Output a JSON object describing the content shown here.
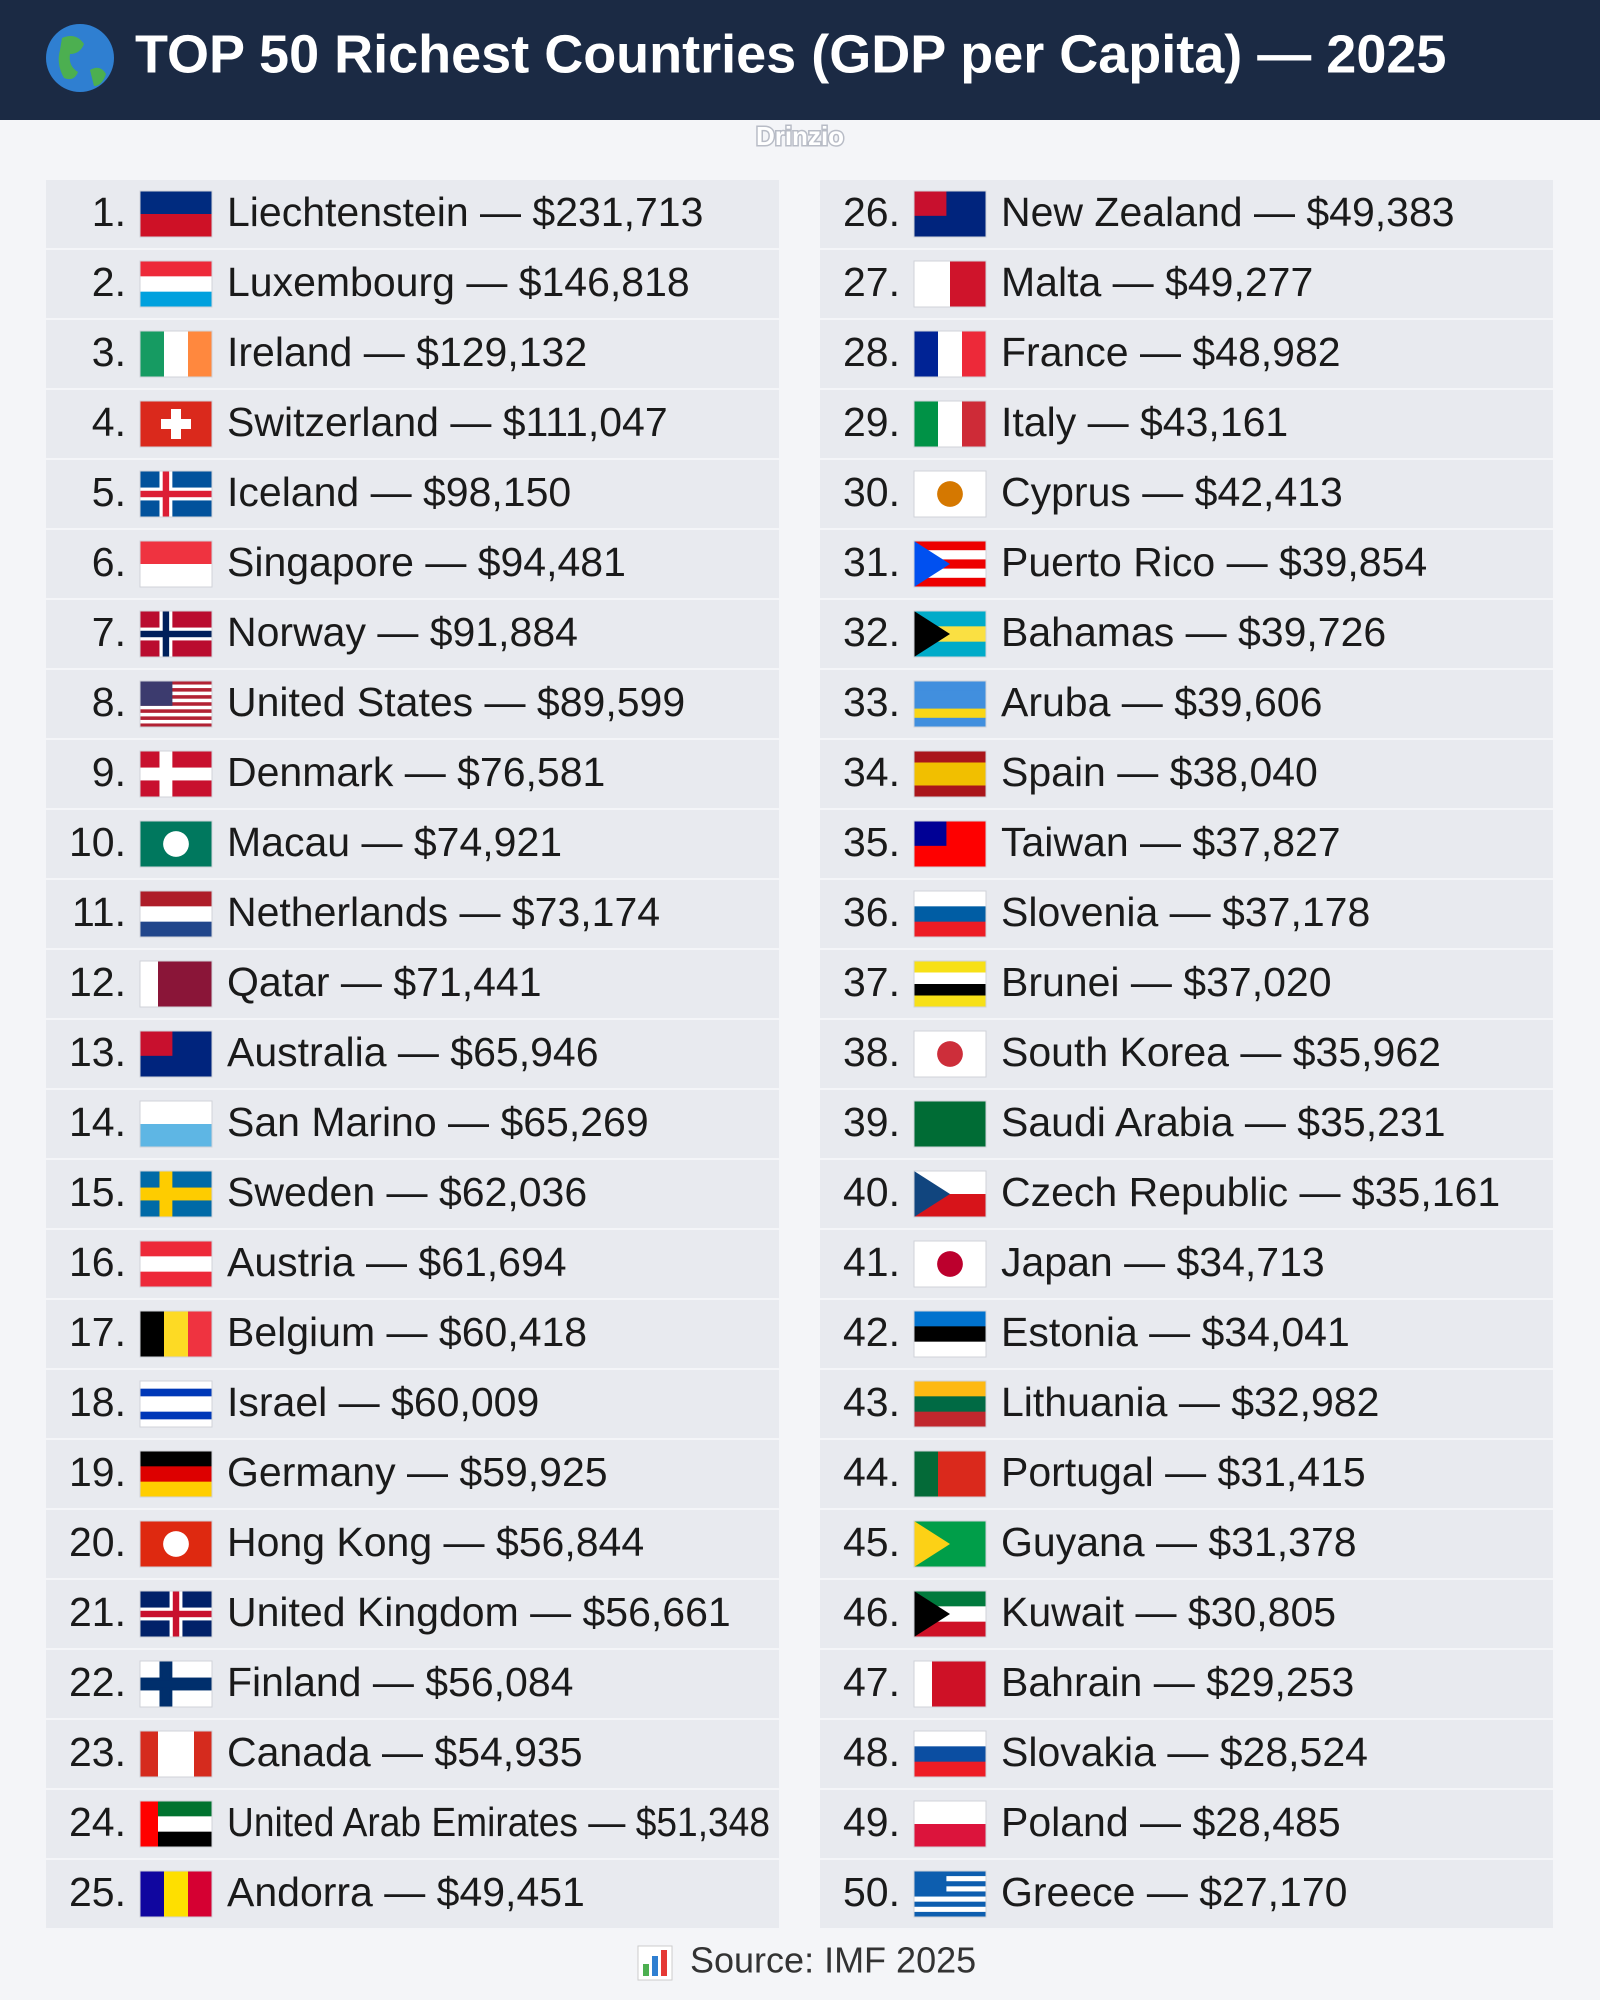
{
  "header": {
    "title": "TOP 50 Richest Countries (GDP per Capita) — 2025",
    "watermark": "Drinzio"
  },
  "items": [
    {
      "rank": "1.",
      "text": "Liechtenstein — $231,713"
    },
    {
      "rank": "2.",
      "text": "Luxembourg — $146,818"
    },
    {
      "rank": "3.",
      "text": "Ireland — $129,132"
    },
    {
      "rank": "4.",
      "text": "Switzerland — $111,047"
    },
    {
      "rank": "5.",
      "text": "Iceland — $98,150"
    },
    {
      "rank": "6.",
      "text": "Singapore — $94,481"
    },
    {
      "rank": "7.",
      "text": "Norway — $91,884"
    },
    {
      "rank": "8.",
      "text": "United States — $89,599"
    },
    {
      "rank": "9.",
      "text": "Denmark — $76,581"
    },
    {
      "rank": "10.",
      "text": "Macau — $74,921"
    },
    {
      "rank": "11.",
      "text": "Netherlands — $73,174"
    },
    {
      "rank": "12.",
      "text": "Qatar — $71,441"
    },
    {
      "rank": "13.",
      "text": "Australia — $65,946"
    },
    {
      "rank": "14.",
      "text": "San Marino — $65,269"
    },
    {
      "rank": "15.",
      "text": "Sweden — $62,036"
    },
    {
      "rank": "16.",
      "text": "Austria — $61,694"
    },
    {
      "rank": "17.",
      "text": "Belgium — $60,418"
    },
    {
      "rank": "18.",
      "text": "Israel — $60,009"
    },
    {
      "rank": "19.",
      "text": "Germany — $59,925"
    },
    {
      "rank": "20.",
      "text": "Hong Kong — $56,844"
    },
    {
      "rank": "21.",
      "text": "United Kingdom — $56,661"
    },
    {
      "rank": "22.",
      "text": "Finland — $56,084"
    },
    {
      "rank": "23.",
      "text": "Canada — $54,935"
    },
    {
      "rank": "24.",
      "text": "United Arab Emirates — $51,348"
    },
    {
      "rank": "25.",
      "text": "Andorra — $49,451"
    },
    {
      "rank": "26.",
      "text": "New Zealand — $49,383"
    },
    {
      "rank": "27.",
      "text": "Malta — $49,277"
    },
    {
      "rank": "28.",
      "text": "France — $48,982"
    },
    {
      "rank": "29.",
      "text": "Italy — $43,161"
    },
    {
      "rank": "30.",
      "text": "Cyprus — $42,413"
    },
    {
      "rank": "31.",
      "text": "Puerto Rico — $39,854"
    },
    {
      "rank": "32.",
      "text": "Bahamas — $39,726"
    },
    {
      "rank": "33.",
      "text": "Aruba — $39,606"
    },
    {
      "rank": "34.",
      "text": "Spain — $38,040"
    },
    {
      "rank": "35.",
      "text": "Taiwan — $37,827"
    },
    {
      "rank": "36.",
      "text": "Slovenia — $37,178"
    },
    {
      "rank": "37.",
      "text": "Brunei — $37,020"
    },
    {
      "rank": "38.",
      "text": "South Korea — $35,962"
    },
    {
      "rank": "39.",
      "text": "Saudi Arabia — $35,231"
    },
    {
      "rank": "40.",
      "text": "Czech Republic — $35,161"
    },
    {
      "rank": "41.",
      "text": "Japan — $34,713"
    },
    {
      "rank": "42.",
      "text": "Estonia — $34,041"
    },
    {
      "rank": "43.",
      "text": "Lithuania — $32,982"
    },
    {
      "rank": "44.",
      "text": "Portugal — $31,415"
    },
    {
      "rank": "45.",
      "text": "Guyana — $31,378"
    },
    {
      "rank": "46.",
      "text": "Kuwait — $30,805"
    },
    {
      "rank": "47.",
      "text": "Bahrain — $29,253"
    },
    {
      "rank": "48.",
      "text": "Slovakia — $28,524"
    },
    {
      "rank": "49.",
      "text": "Poland — $28,485"
    },
    {
      "rank": "50.",
      "text": "Greece — $27,170"
    }
  ],
  "footer": {
    "source": "Source: IMF 2025"
  }
}
